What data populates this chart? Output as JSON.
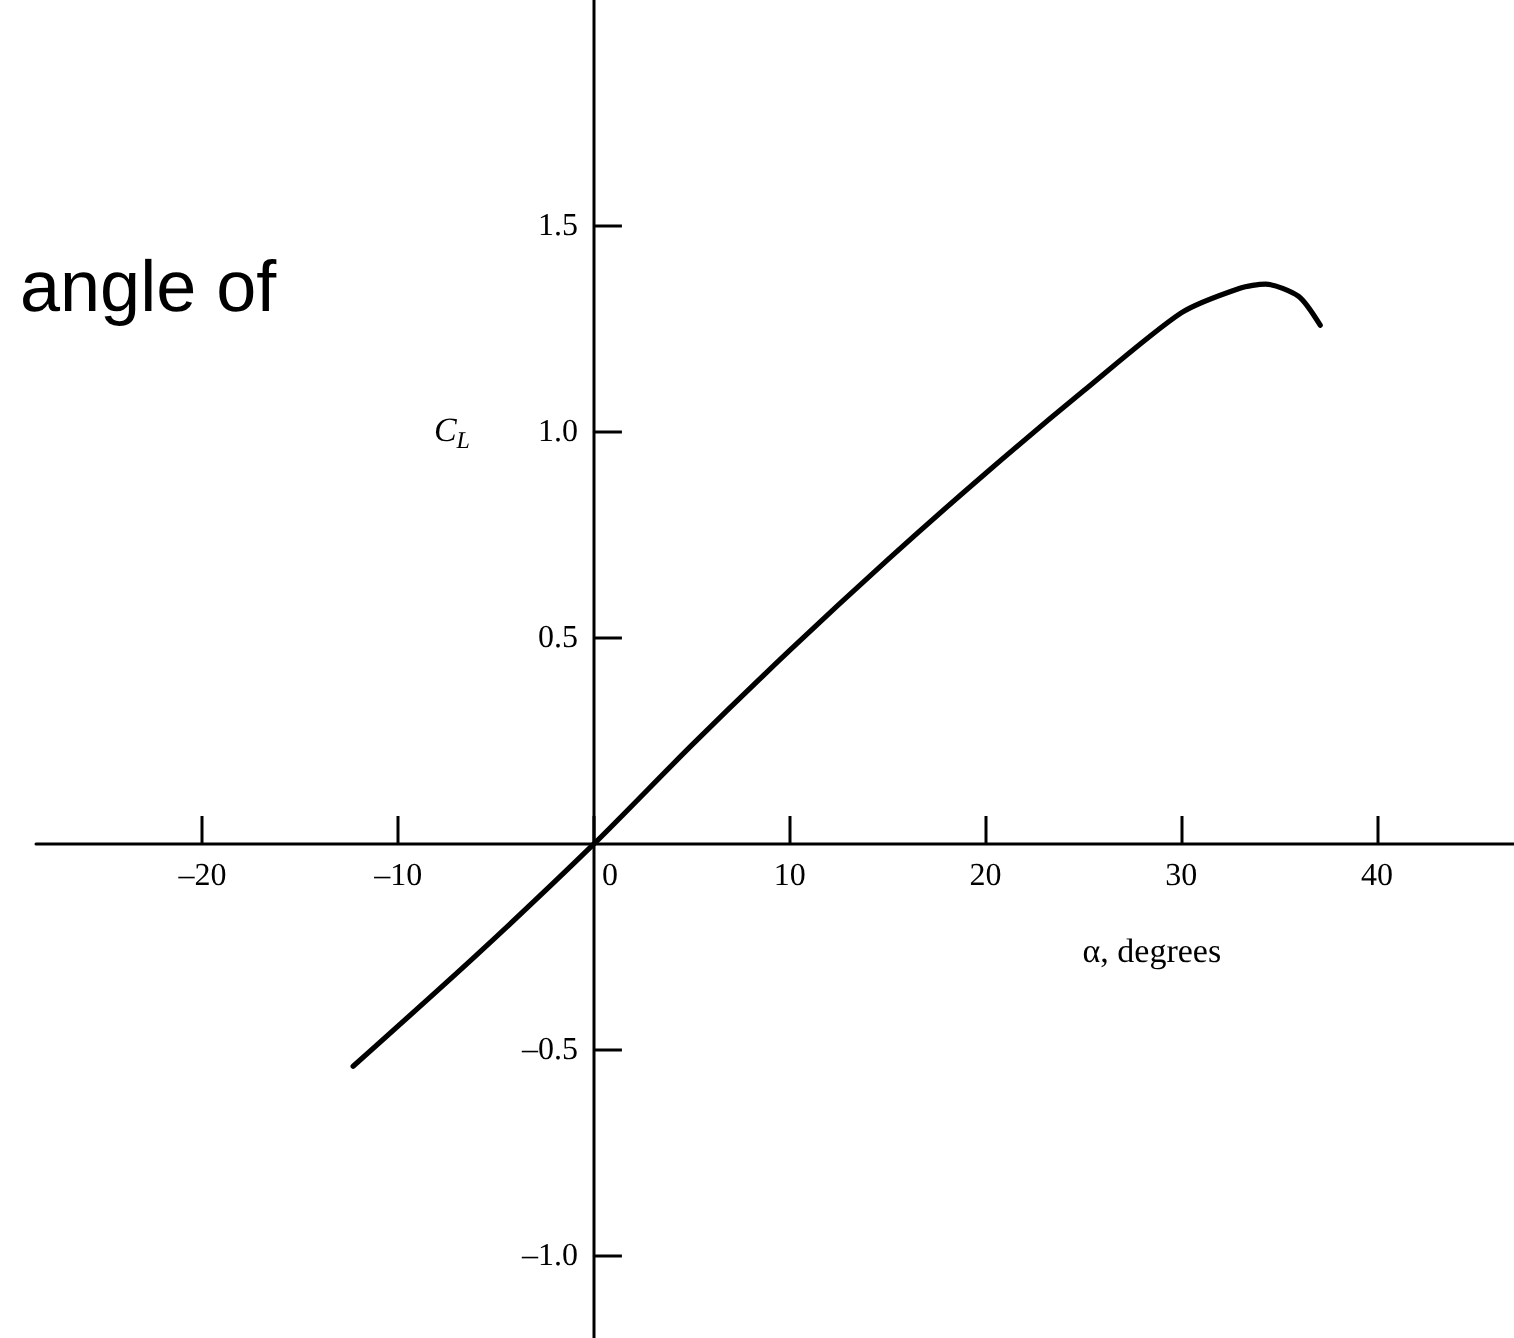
{
  "chart_data": {
    "type": "line",
    "xlabel": "α, degrees",
    "ylabel": "C$_{L}$",
    "annotations": [
      "angle of"
    ],
    "x": [
      -12.3,
      -6,
      0,
      5,
      10,
      15,
      20,
      25,
      30,
      33,
      34.3,
      36,
      37.1
    ],
    "series": [
      {
        "color": "#000000",
        "values": [
          -0.54,
          -0.27,
          0,
          0.24,
          0.47,
          0.69,
          0.9,
          1.1,
          1.29,
          1.35,
          1.36,
          1.33,
          1.26
        ]
      }
    ],
    "xlim": [
      -28.5,
      47
    ],
    "ylim": [
      -1.2,
      2.05
    ],
    "xticks": [
      {
        "value": -20,
        "label": "–20"
      },
      {
        "value": -10,
        "label": "–10"
      },
      0,
      10,
      20,
      30,
      40
    ],
    "yticks": [
      {
        "value": -1,
        "label": "–1.0"
      },
      {
        "value": -0.5,
        "label": "–0.5"
      },
      {
        "value": 0.5,
        "label": "0.5"
      },
      {
        "value": 1,
        "label": "1.0"
      },
      {
        "value": 1.5,
        "label": "1.5"
      }
    ],
    "grid": false,
    "marker": "none",
    "line_style": "solid"
  }
}
